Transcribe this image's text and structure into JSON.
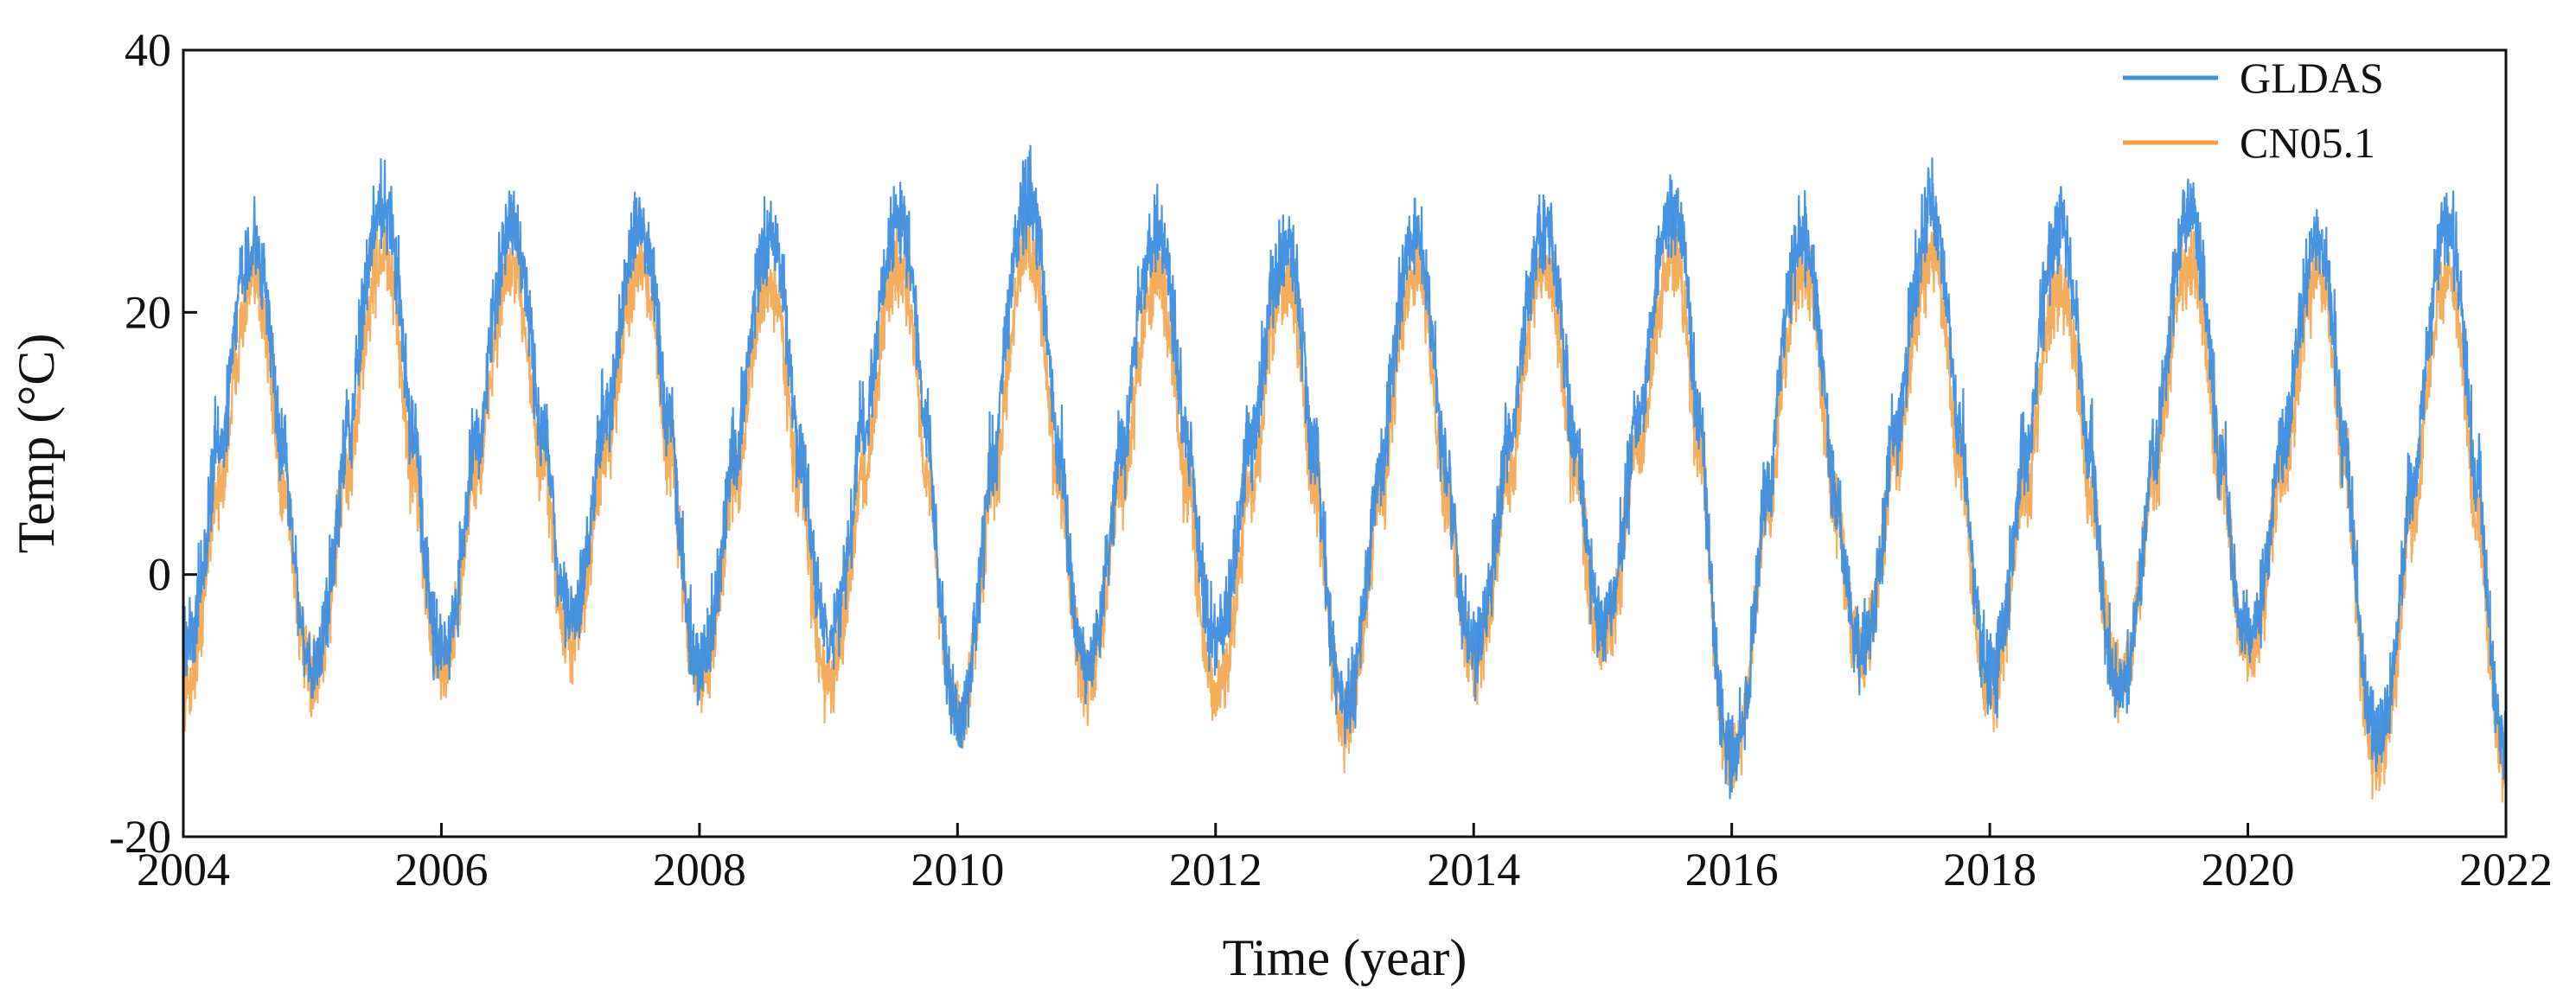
{
  "chart_data": {
    "type": "line",
    "title": "",
    "xlabel": "Time (year)",
    "ylabel": "Temp (°C)",
    "xlim": [
      2004,
      2022
    ],
    "ylim": [
      -20,
      40
    ],
    "x_ticks": [
      2004,
      2006,
      2008,
      2010,
      2012,
      2014,
      2016,
      2018,
      2020,
      2022
    ],
    "y_ticks": [
      -20,
      0,
      20,
      40
    ],
    "x_tick_labels": [
      "2004",
      "2006",
      "2008",
      "2010",
      "2012",
      "2014",
      "2016",
      "2018",
      "2020",
      "2022"
    ],
    "y_tick_labels": [
      "-20",
      "0",
      "20",
      "40"
    ],
    "grid": false,
    "legend_position": "top-right",
    "series": [
      {
        "name": "GLDAS",
        "color": "#3d8fe0",
        "sampling": "daily",
        "annual_max_approx": [
          28,
          31.5,
          29.5,
          30,
          28.5,
          30.5,
          32,
          29.5,
          28.5,
          29,
          29.5,
          31,
          29,
          31,
          29.5,
          30.5,
          28.5,
          29.5
        ],
        "annual_min_approx": [
          -9,
          -10,
          -9,
          -6,
          -10,
          -8,
          -14,
          -10,
          -8,
          -13,
          -9,
          -7,
          -17,
          -9,
          -11,
          -12,
          -8,
          -16
        ]
      },
      {
        "name": "CN05.1",
        "color": "#f5a040",
        "sampling": "daily",
        "annual_max_approx": [
          26,
          28,
          27,
          27.5,
          26,
          27.5,
          28.5,
          26.5,
          26,
          27,
          27,
          28,
          27,
          28,
          26,
          27.5,
          26.5,
          26.5
        ],
        "annual_min_approx": [
          -13,
          -12,
          -11,
          -9,
          -12,
          -12,
          -15,
          -12,
          -13,
          -15,
          -11,
          -9,
          -18,
          -10,
          -13,
          -12,
          -10,
          -18
        ]
      }
    ]
  }
}
